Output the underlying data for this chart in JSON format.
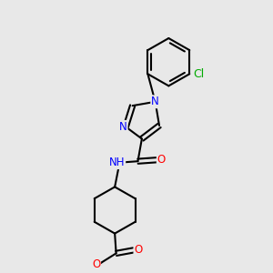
{
  "bg_color": "#e8e8e8",
  "bond_color": "#000000",
  "bond_width": 1.5,
  "atom_colors": {
    "N": "#0000ff",
    "O": "#ff0000",
    "Cl": "#00aa00",
    "C": "#000000",
    "H": "#555555"
  },
  "font_size": 8.5,
  "fig_width": 3.0,
  "fig_height": 3.0
}
